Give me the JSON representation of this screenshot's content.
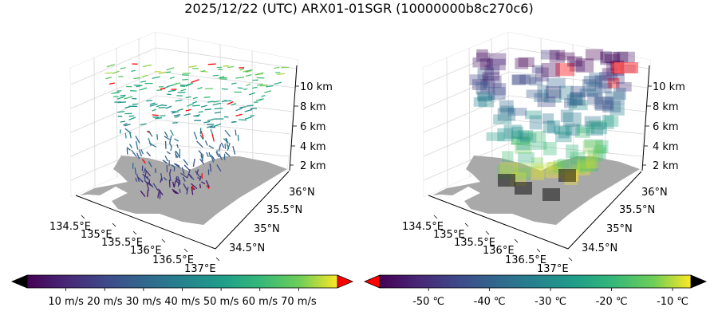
{
  "title": "2025/12/22 (UTC) ARX01-01SGR (10000000b8c270c6)",
  "colors": {
    "land": "#a9a9a9",
    "pane": "#ffffff",
    "grid": "#d0d0d0",
    "over": "#ff0000",
    "under_left": "#000000",
    "under_right": "#ff0000",
    "over_right": "#000000"
  },
  "chart_data": [
    {
      "type": "scatter",
      "subtype": "3d-wind-vectors",
      "xlabel": "",
      "ylabel": "",
      "zlabel": "",
      "x_ticks": [
        "134.5°E",
        "135°E",
        "135.5°E",
        "136°E",
        "136.5°E",
        "137°E"
      ],
      "y_ticks": [
        "34.5°N",
        "35°N",
        "35.5°N",
        "36°N"
      ],
      "z_ticks": [
        "2 km",
        "4 km",
        "6 km",
        "8 km",
        "10 km"
      ],
      "xlim": [
        134.3,
        137.0
      ],
      "ylim": [
        34.3,
        36.3
      ],
      "zlim": [
        0,
        12
      ],
      "grid": true,
      "colorbar": {
        "cmap": "viridis",
        "range": [
          0,
          80
        ],
        "extend": "both",
        "ticks": [
          "10 m/s",
          "20 m/s",
          "30 m/s",
          "40 m/s",
          "50 m/s",
          "60 m/s",
          "70 m/s"
        ]
      }
    },
    {
      "type": "scatter",
      "subtype": "3d-voxels",
      "xlabel": "",
      "ylabel": "",
      "zlabel": "",
      "x_ticks": [
        "134.5°E",
        "135°E",
        "135.5°E",
        "136°E",
        "136.5°E",
        "137°E"
      ],
      "y_ticks": [
        "34.5°N",
        "35°N",
        "35.5°N",
        "36°N"
      ],
      "z_ticks": [
        "2 km",
        "4 km",
        "6 km",
        "8 km",
        "10 km"
      ],
      "xlim": [
        134.3,
        137.0
      ],
      "ylim": [
        34.3,
        36.3
      ],
      "zlim": [
        0,
        12
      ],
      "grid": true,
      "colorbar": {
        "cmap": "viridis",
        "range": [
          -58,
          -7
        ],
        "extend": "both",
        "ticks": [
          "-50 ℃",
          "-40 ℃",
          "-30 ℃",
          "-20 ℃",
          "-10 ℃"
        ]
      }
    }
  ]
}
